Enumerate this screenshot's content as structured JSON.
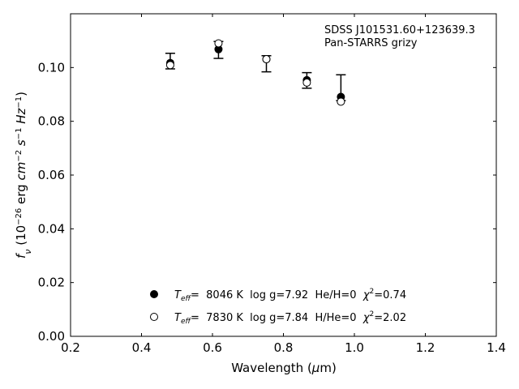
{
  "chart_data": {
    "type": "scatter",
    "title": "",
    "xlabel": "Wavelength (μm)",
    "ylabel": "f_ν (10^-26 erg cm^-2 s^-1 Hz^-1)",
    "xlim": [
      0.2,
      1.4
    ],
    "ylim": [
      0.0,
      0.12
    ],
    "x_ticks": [
      0.2,
      0.4,
      0.6,
      0.8,
      1.0,
      1.2,
      1.4
    ],
    "x_tick_labels": [
      "0.2",
      "0.4",
      "0.6",
      "0.8",
      "1.0",
      "1.2",
      "1.4"
    ],
    "y_ticks": [
      0.0,
      0.02,
      0.04,
      0.06,
      0.08,
      0.1
    ],
    "y_tick_labels": [
      "0.00",
      "0.02",
      "0.04",
      "0.06",
      "0.08",
      "0.10"
    ],
    "grid": false,
    "legend_position": "bottom-center",
    "annotation": {
      "line1": "SDSS J101531.60+123639.3",
      "line2": "Pan-STARRS grizy"
    },
    "observed": {
      "x": [
        0.481,
        0.617,
        0.752,
        0.866,
        0.962
      ],
      "y": [
        0.1024,
        0.1068,
        0.1014,
        0.0952,
        0.0925
      ],
      "yerr_low": [
        0.0029,
        0.0034,
        0.003,
        0.0029,
        0.0048
      ],
      "yerr_high": [
        0.0029,
        0.0029,
        0.003,
        0.0029,
        0.0048
      ]
    },
    "series": [
      {
        "name": "T_eff= 8046 K log g=7.92 He/H=0 χ²=0.74",
        "marker": "filled-circle",
        "x": [
          0.481,
          0.617,
          0.752,
          0.866,
          0.962
        ],
        "y": [
          0.1017,
          0.1068,
          0.1031,
          0.0953,
          0.0891
        ]
      },
      {
        "name": "T_eff= 7830 K log g=7.84 H/He=0 χ²=2.02",
        "marker": "open-circle",
        "x": [
          0.481,
          0.617,
          0.752,
          0.866,
          0.962
        ],
        "y": [
          0.1009,
          0.109,
          0.1031,
          0.0944,
          0.0873
        ]
      }
    ],
    "legend": {
      "entry1": {
        "teff_sym": "T",
        "teff_sub": "eff",
        "text_a": "=  8046 K  log g=7.92  He/H=0  ",
        "chi": "χ",
        "chi_exp": "2",
        "text_b": "=0.74"
      },
      "entry2": {
        "teff_sym": "T",
        "teff_sub": "eff",
        "text_a": "=  7830 K  log g=7.84  H/He=0  ",
        "chi": "χ",
        "chi_exp": "2",
        "text_b": "=2.02"
      }
    },
    "colors": {
      "axis": "#000000",
      "marker": "#000000",
      "background": "#ffffff"
    }
  }
}
